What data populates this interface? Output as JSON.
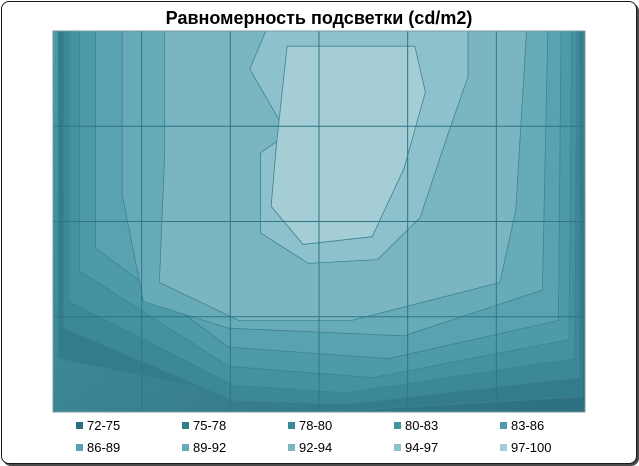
{
  "chart_data": {
    "type": "heatmap",
    "subtype": "contour",
    "title": "Равномерность подсветки (cd/m2)",
    "xlabel": "",
    "ylabel": "",
    "grid": true,
    "legend_position": "bottom",
    "levels": [
      {
        "label": "72-75",
        "color": "#2c6f80"
      },
      {
        "label": "75-78",
        "color": "#337c8c"
      },
      {
        "label": "78-80",
        "color": "#3a8898"
      },
      {
        "label": "80-83",
        "color": "#4292a2"
      },
      {
        "label": "83-86",
        "color": "#4c9aaa"
      },
      {
        "label": "86-89",
        "color": "#58a2b1"
      },
      {
        "label": "89-92",
        "color": "#67abb9"
      },
      {
        "label": "92-94",
        "color": "#79b6c2"
      },
      {
        "label": "94-97",
        "color": "#8dc1cb"
      },
      {
        "label": "97-100",
        "color": "#a4cdd6"
      }
    ],
    "grid_cells": {
      "columns": 6,
      "rows": 4
    }
  }
}
